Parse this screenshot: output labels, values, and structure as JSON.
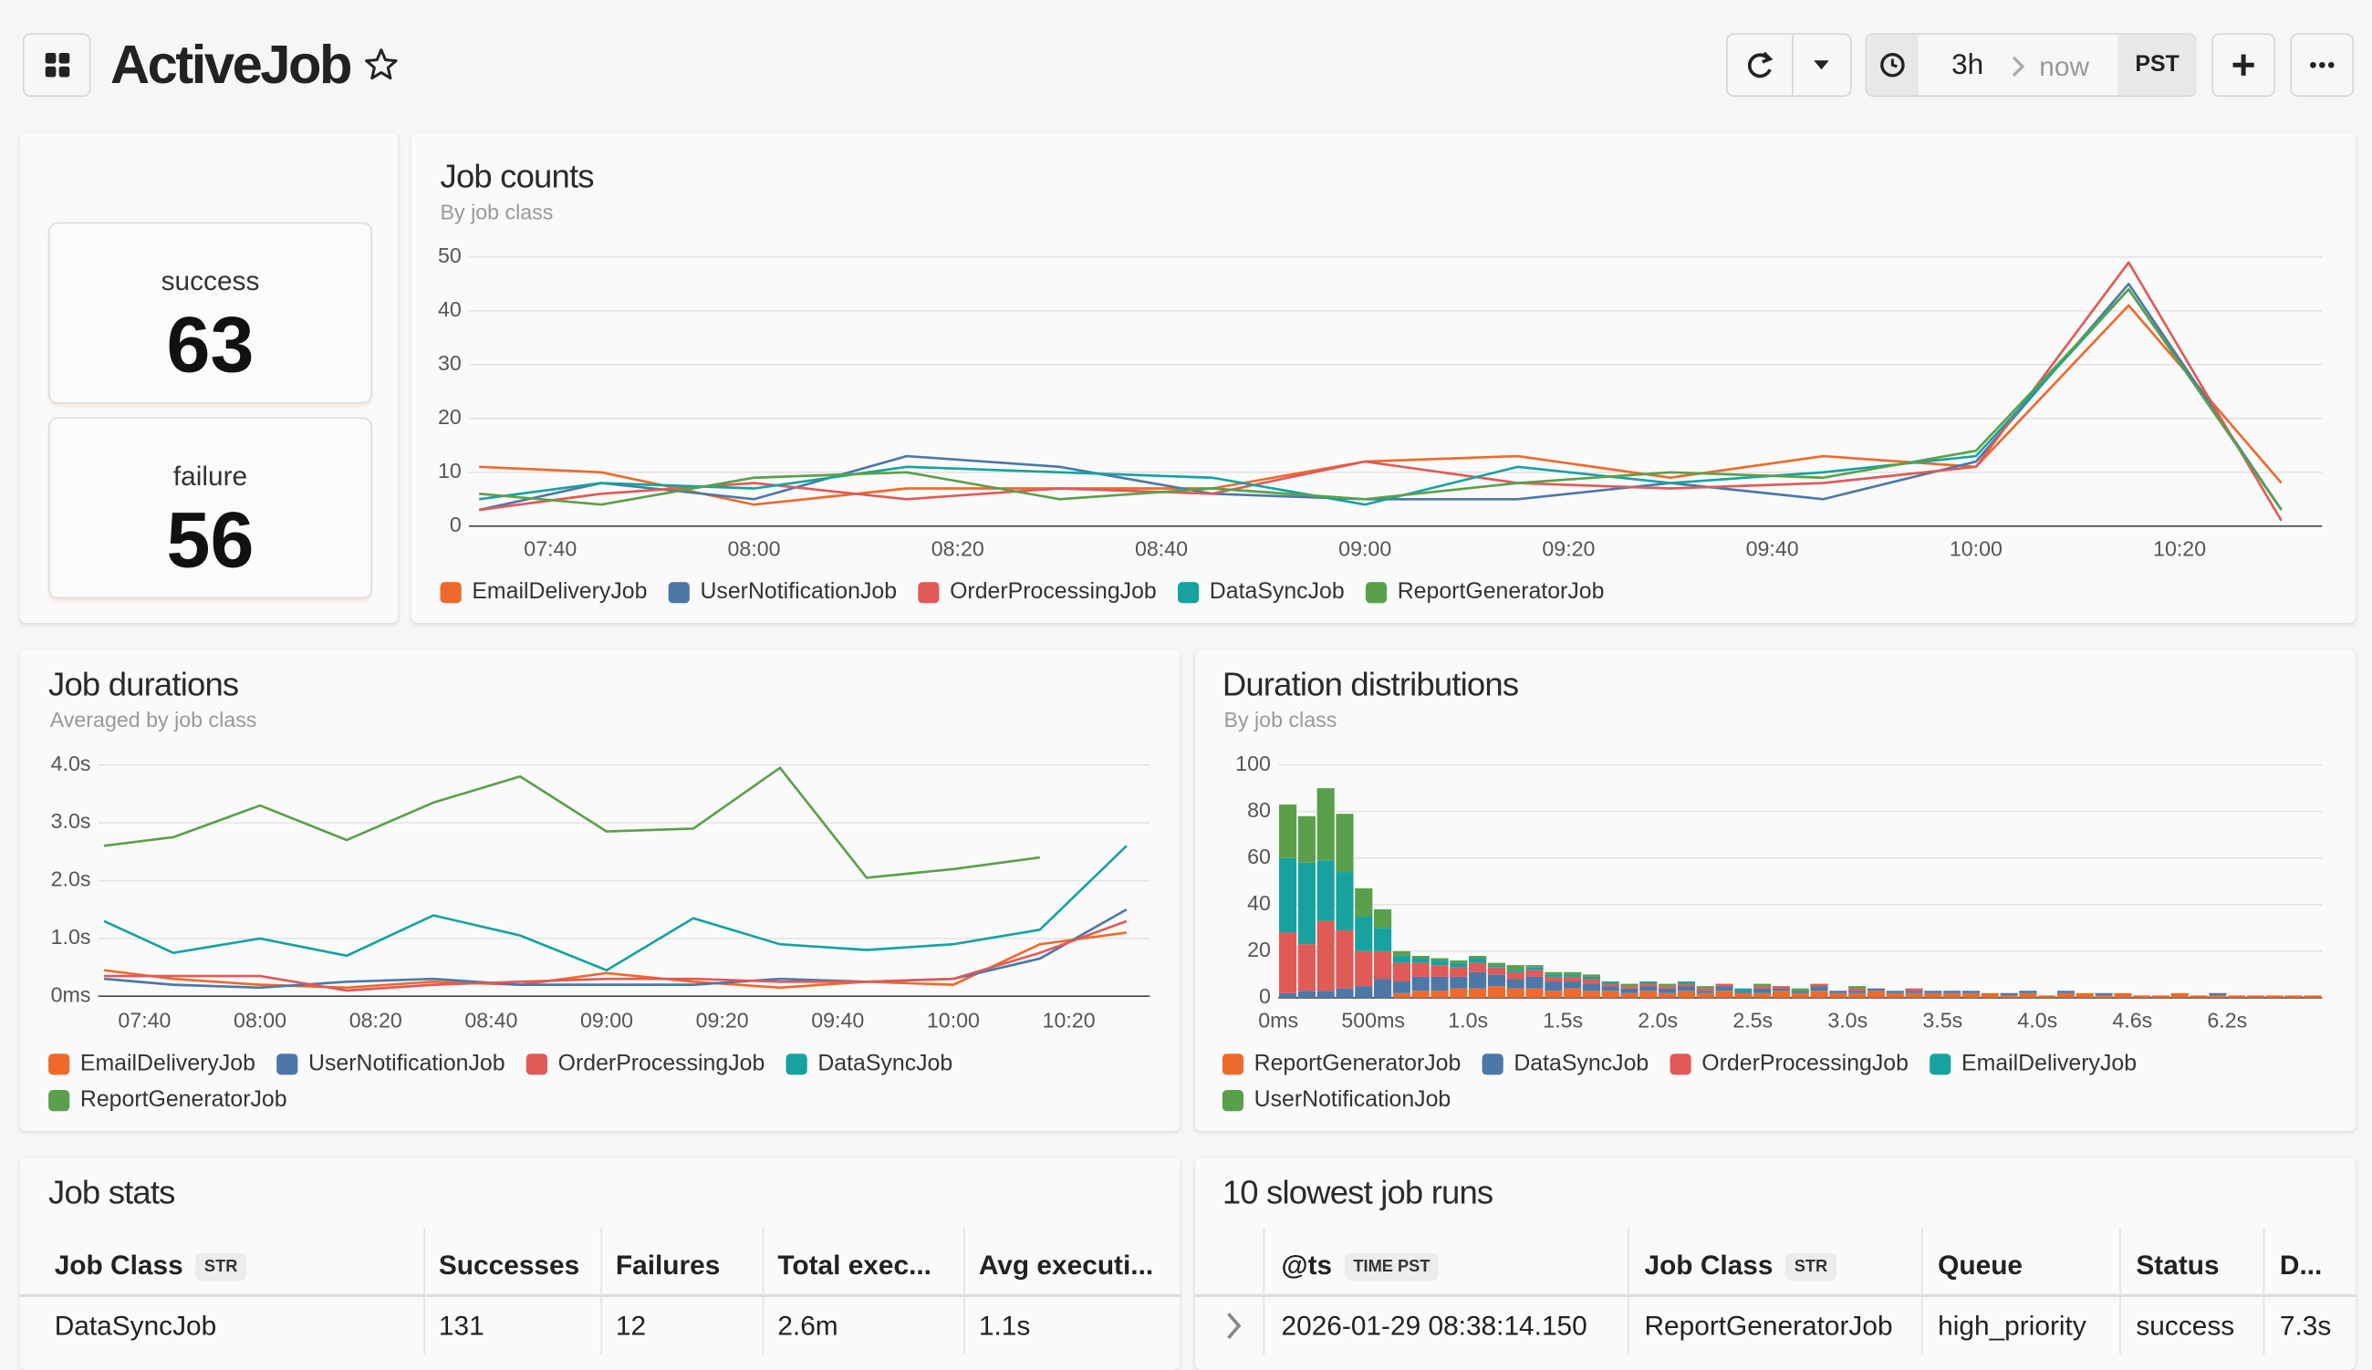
{
  "header": {
    "title": "ActiveJob",
    "range": "3h",
    "end": "now",
    "tz": "PST"
  },
  "stats": [
    {
      "label": "success",
      "value": 63
    },
    {
      "label": "failure",
      "value": 56
    }
  ],
  "chart_data": [
    {
      "type": "line",
      "title": "Job counts",
      "subtitle": "By job class",
      "x": [
        "07:33",
        "07:45",
        "08:00",
        "08:15",
        "08:30",
        "08:45",
        "09:00",
        "09:15",
        "09:30",
        "09:45",
        "10:00",
        "10:15",
        "10:30"
      ],
      "xlim": [
        "07:32",
        "10:34"
      ],
      "xticks": [
        "07:40",
        "08:00",
        "08:20",
        "08:40",
        "09:00",
        "09:20",
        "09:40",
        "10:00",
        "10:20"
      ],
      "ylim": [
        0,
        50
      ],
      "yticks": [
        0,
        10,
        20,
        30,
        40,
        50
      ],
      "grid": true,
      "series": [
        {
          "name": "EmailDeliveryJob",
          "color": "#ee6a2c",
          "values": [
            11,
            10,
            4,
            7,
            7,
            7,
            12,
            13,
            9,
            13,
            11,
            41,
            8
          ]
        },
        {
          "name": "UserNotificationJob",
          "color": "#4c78a8",
          "values": [
            3,
            8,
            5,
            13,
            11,
            6,
            5,
            5,
            8,
            5,
            12,
            45,
            3
          ]
        },
        {
          "name": "OrderProcessingJob",
          "color": "#e05a58",
          "values": [
            3,
            6,
            8,
            5,
            7,
            6,
            12,
            8,
            7,
            8,
            11,
            49,
            1
          ]
        },
        {
          "name": "DataSyncJob",
          "color": "#17a2a0",
          "values": [
            5,
            8,
            7,
            11,
            10,
            9,
            4,
            11,
            8,
            10,
            13,
            44,
            3
          ]
        },
        {
          "name": "ReportGeneratorJob",
          "color": "#5aa04a",
          "values": [
            6,
            4,
            9,
            10,
            5,
            7,
            5,
            8,
            10,
            9,
            14,
            44,
            3
          ]
        }
      ]
    },
    {
      "type": "line",
      "title": "Job durations",
      "subtitle": "Averaged by job class",
      "x": [
        "07:33",
        "07:45",
        "08:00",
        "08:15",
        "08:30",
        "08:45",
        "09:00",
        "09:15",
        "09:30",
        "09:45",
        "10:00",
        "10:15",
        "10:30"
      ],
      "xlim": [
        "07:32",
        "10:34"
      ],
      "xticks": [
        "07:40",
        "08:00",
        "08:20",
        "08:40",
        "09:00",
        "09:20",
        "09:40",
        "10:00",
        "10:20"
      ],
      "ylim": [
        0,
        4
      ],
      "yticks": [
        {
          "value": 0,
          "label": "0ms"
        },
        {
          "value": 1,
          "label": "1.0s"
        },
        {
          "value": 2,
          "label": "2.0s"
        },
        {
          "value": 3,
          "label": "3.0s"
        },
        {
          "value": 4,
          "label": "4.0s"
        }
      ],
      "grid": true,
      "series": [
        {
          "name": "EmailDeliveryJob",
          "color": "#ee6a2c",
          "values": [
            0.45,
            0.3,
            0.2,
            0.15,
            0.25,
            0.2,
            0.4,
            0.25,
            0.15,
            0.25,
            0.2,
            0.9,
            1.1
          ]
        },
        {
          "name": "UserNotificationJob",
          "color": "#4c78a8",
          "values": [
            0.3,
            0.2,
            0.15,
            0.25,
            0.3,
            0.2,
            0.2,
            0.2,
            0.3,
            0.25,
            0.3,
            0.65,
            1.5
          ]
        },
        {
          "name": "OrderProcessingJob",
          "color": "#e05a58",
          "values": [
            0.35,
            0.35,
            0.35,
            0.1,
            0.2,
            0.25,
            0.3,
            0.3,
            0.25,
            0.25,
            0.3,
            0.75,
            1.3
          ]
        },
        {
          "name": "DataSyncJob",
          "color": "#17a2a0",
          "values": [
            1.3,
            0.75,
            1.0,
            0.7,
            1.4,
            1.05,
            0.45,
            1.35,
            0.9,
            0.8,
            0.9,
            1.15,
            2.6
          ]
        },
        {
          "name": "ReportGeneratorJob",
          "color": "#5aa04a",
          "values": [
            2.6,
            2.75,
            3.3,
            2.7,
            3.35,
            3.8,
            2.85,
            2.9,
            3.95,
            2.05,
            2.2,
            2.4,
            null
          ]
        }
      ]
    },
    {
      "type": "bar",
      "stacked": true,
      "title": "Duration distributions",
      "subtitle": "By job class",
      "categories": [
        "0ms",
        null,
        null,
        null,
        null,
        "500ms",
        null,
        null,
        null,
        null,
        "1.0s",
        null,
        null,
        null,
        null,
        "1.5s",
        null,
        null,
        null,
        null,
        "2.0s",
        null,
        null,
        null,
        null,
        "2.5s",
        null,
        null,
        null,
        null,
        "3.0s",
        null,
        null,
        null,
        null,
        "3.5s",
        null,
        null,
        null,
        null,
        "4.0s",
        null,
        null,
        null,
        null,
        "4.6s",
        null,
        null,
        null,
        null,
        "6.2s",
        null,
        null,
        null,
        null
      ],
      "ylim": [
        0,
        100
      ],
      "yticks": [
        0,
        20,
        40,
        60,
        80,
        100
      ],
      "grid": true,
      "series": [
        {
          "name": "ReportGeneratorJob",
          "color": "#ee6a2c",
          "values": [
            0,
            0,
            0,
            0,
            0,
            0,
            2,
            3,
            3,
            4,
            4,
            5,
            4,
            4,
            3,
            4,
            3,
            3,
            2,
            3,
            2,
            3,
            2,
            3,
            2,
            2,
            3,
            2,
            3,
            2,
            2,
            3,
            2,
            2,
            2,
            2,
            2,
            2,
            1,
            2,
            1,
            2,
            2,
            1,
            2,
            1,
            1,
            2,
            1,
            1,
            1,
            1,
            1,
            1,
            1
          ]
        },
        {
          "name": "DataSyncJob",
          "color": "#4c78a8",
          "values": [
            2,
            3,
            3,
            4,
            5,
            8,
            5,
            6,
            6,
            5,
            7,
            5,
            4,
            5,
            4,
            3,
            3,
            2,
            2,
            2,
            2,
            2,
            1,
            2,
            1,
            2,
            1,
            1,
            2,
            1,
            1,
            1,
            1,
            1,
            1,
            1,
            1,
            0,
            1,
            1,
            0,
            1,
            0,
            1,
            0,
            0,
            0,
            0,
            0,
            1,
            0,
            0,
            0,
            0,
            0
          ]
        },
        {
          "name": "OrderProcessingJob",
          "color": "#e05a58",
          "values": [
            26,
            20,
            30,
            25,
            15,
            12,
            8,
            6,
            5,
            4,
            4,
            3,
            3,
            3,
            2,
            2,
            2,
            1,
            1,
            1,
            1,
            1,
            1,
            1,
            0,
            1,
            1,
            0,
            1,
            0,
            1,
            0,
            0,
            1,
            0,
            0,
            0,
            0,
            0,
            0,
            0,
            0,
            0,
            0,
            0,
            0,
            0,
            0,
            0,
            0,
            0,
            0,
            0,
            0,
            0
          ]
        },
        {
          "name": "EmailDeliveryJob",
          "color": "#17a2a0",
          "values": [
            32,
            35,
            26,
            25,
            15,
            10,
            3,
            2,
            2,
            2,
            2,
            1,
            1,
            1,
            1,
            1,
            1,
            1,
            0,
            1,
            0,
            1,
            0,
            0,
            1,
            0,
            0,
            0,
            0,
            0,
            0,
            0,
            0,
            0,
            0,
            0,
            0,
            0,
            0,
            0,
            0,
            0,
            0,
            0,
            0,
            0,
            0,
            0,
            0,
            0,
            0,
            0,
            0,
            0,
            0
          ]
        },
        {
          "name": "UserNotificationJob",
          "color": "#5aa04a",
          "values": [
            23,
            20,
            31,
            25,
            12,
            8,
            2,
            1,
            1,
            1,
            1,
            1,
            2,
            1,
            1,
            1,
            1,
            0,
            1,
            0,
            1,
            0,
            1,
            0,
            0,
            1,
            0,
            1,
            0,
            0,
            1,
            0,
            0,
            0,
            0,
            0,
            0,
            0,
            0,
            0,
            0,
            0,
            0,
            0,
            0,
            0,
            0,
            0,
            0,
            0,
            0,
            0,
            0,
            0,
            0
          ]
        }
      ]
    }
  ],
  "tables": [
    {
      "title": "Job stats",
      "columns": [
        {
          "name": "Job Class",
          "badge": "STR"
        },
        {
          "name": "Successes"
        },
        {
          "name": "Failures"
        },
        {
          "name": "Total exec..."
        },
        {
          "name": "Avg executi..."
        }
      ],
      "rows": [
        [
          "DataSyncJob",
          131,
          12,
          "2.6m",
          "1.1s"
        ]
      ]
    },
    {
      "title": "10 slowest job runs",
      "columns": [
        {
          "name": "@ts",
          "badge": "TIME PST"
        },
        {
          "name": "Job Class",
          "badge": "STR"
        },
        {
          "name": "Queue"
        },
        {
          "name": "Status"
        },
        {
          "name": "D..."
        }
      ],
      "rows": [
        [
          "2026-01-29 08:38:14.150",
          "ReportGeneratorJob",
          "high_priority",
          "success",
          "7.3s"
        ]
      ]
    }
  ]
}
